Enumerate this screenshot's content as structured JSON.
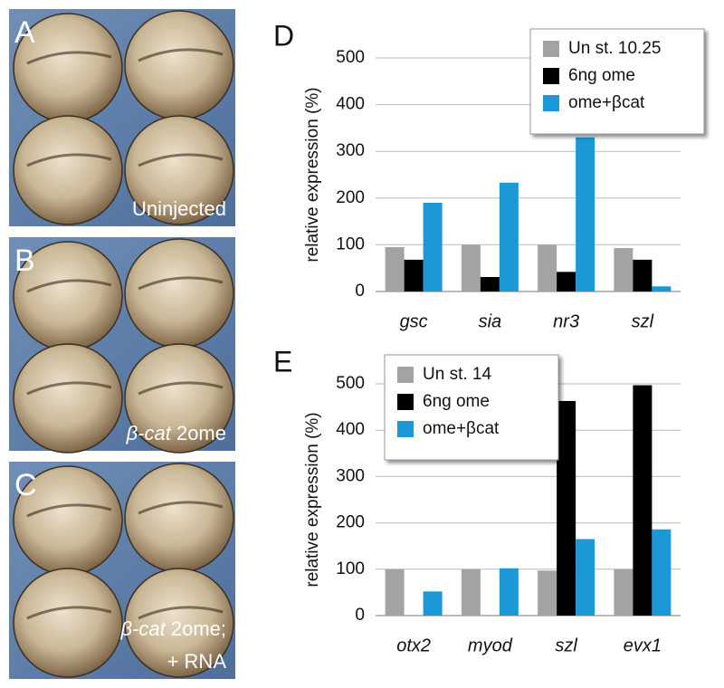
{
  "panels": [
    {
      "label": "A",
      "caption_lines": [
        [
          {
            "text": "Uninjected"
          }
        ]
      ]
    },
    {
      "label": "B",
      "caption_lines": [
        [
          {
            "text": "β-cat",
            "italic": true
          },
          {
            "text": " 2ome"
          }
        ]
      ]
    },
    {
      "label": "C",
      "caption_lines": [
        [
          {
            "text": "β-cat",
            "italic": true
          },
          {
            "text": " 2ome;"
          }
        ],
        [
          {
            "text": "+ RNA"
          }
        ]
      ]
    }
  ],
  "chart_data": [
    {
      "type": "bar",
      "panel_label": "D",
      "ylabel": "relative expression (%)",
      "categories": [
        "gsc",
        "sia",
        "nr3",
        "szl"
      ],
      "series": [
        {
          "name": "Un st. 10.25",
          "color": "#a3a3a3",
          "values": [
            95,
            100,
            100,
            93
          ]
        },
        {
          "name": "6ng ome",
          "color": "#000000",
          "values": [
            68,
            31,
            42,
            68
          ]
        },
        {
          "name": "ome+βcat",
          "color": "#1b98d5",
          "values": [
            190,
            233,
            330,
            11
          ]
        }
      ],
      "ylim": [
        0,
        500
      ],
      "yticks": [
        0,
        100,
        200,
        300,
        400,
        500
      ],
      "grid": true,
      "legend": "upper right"
    },
    {
      "type": "bar",
      "panel_label": "E",
      "ylabel": "relative expression (%)",
      "categories": [
        "otx2",
        "myod",
        "szl",
        "evx1"
      ],
      "series": [
        {
          "name": "Un st. 14",
          "color": "#a3a3a3",
          "values": [
            100,
            100,
            97,
            100
          ]
        },
        {
          "name": "6ng ome",
          "color": "#000000",
          "values": [
            0,
            0,
            463,
            497
          ]
        },
        {
          "name": "ome+βcat",
          "color": "#1b98d5",
          "values": [
            52,
            102,
            165,
            186
          ]
        }
      ],
      "ylim": [
        0,
        500
      ],
      "yticks": [
        0,
        100,
        200,
        300,
        400,
        500
      ],
      "grid": true,
      "legend": "upper left"
    }
  ]
}
